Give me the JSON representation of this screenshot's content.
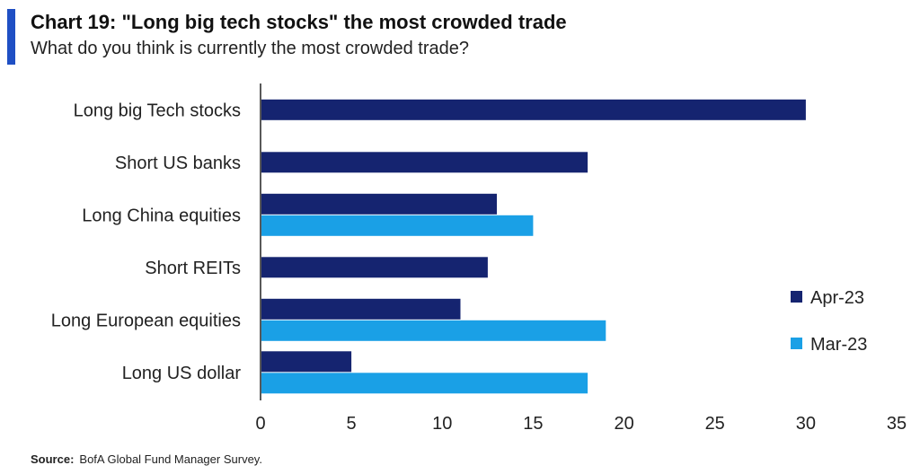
{
  "header": {
    "title": "Chart 19: \"Long big tech stocks\" the most crowded trade",
    "subtitle": "What do you think is currently the most crowded trade?",
    "accent_color": "#1f4fc4"
  },
  "footer": {
    "source_label": "Source:",
    "source_text": "BofA Global Fund Manager Survey."
  },
  "chart_data": {
    "type": "bar",
    "orientation": "horizontal",
    "categories": [
      "Long big Tech stocks",
      "Short US banks",
      "Long China equities",
      "Short REITs",
      "Long European equities",
      "Long US dollar"
    ],
    "series": [
      {
        "name": "Apr-23",
        "color": "#152470",
        "values": [
          30,
          18,
          13,
          12.5,
          11,
          5
        ]
      },
      {
        "name": "Mar-23",
        "color": "#1aa0e6",
        "values": [
          null,
          null,
          15,
          null,
          19,
          18
        ]
      }
    ],
    "xlim": [
      0,
      35
    ],
    "xticks": [
      "0",
      "5",
      "10",
      "15",
      "20",
      "25",
      "30",
      "35"
    ],
    "legend_position": "right",
    "grid": false
  }
}
